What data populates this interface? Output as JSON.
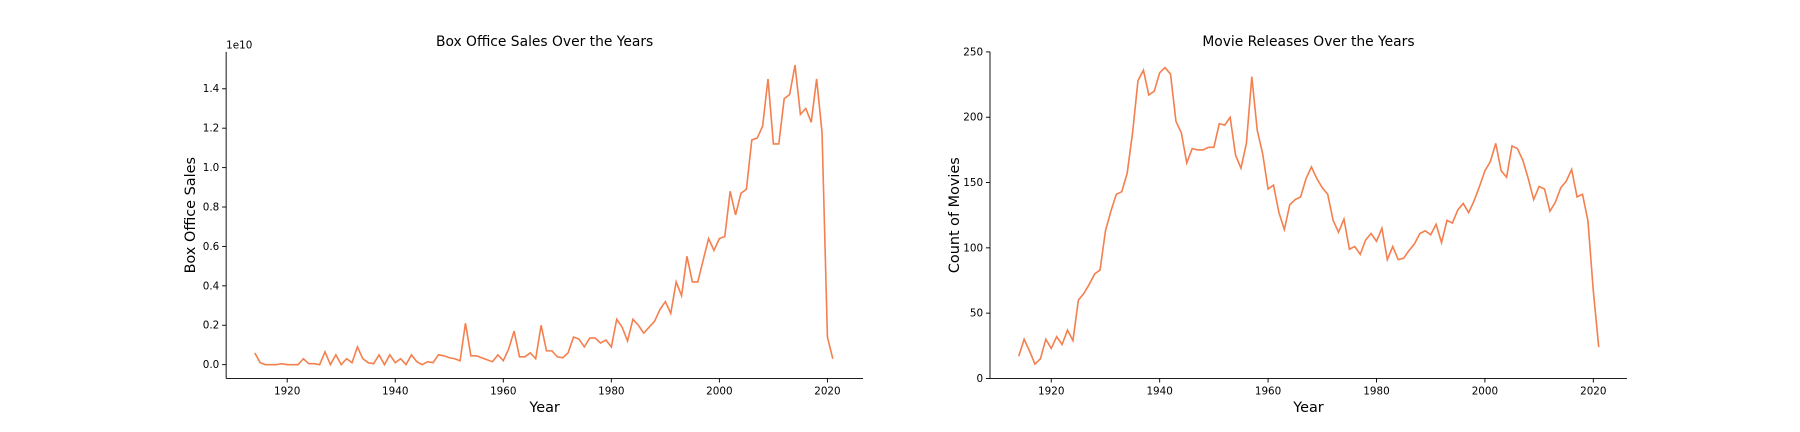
{
  "chart_data": [
    {
      "type": "line",
      "title": "Box Office Sales Over the Years",
      "x_label": "Year",
      "y_label": "Box Office Sales",
      "y_offset_label": "1e10",
      "color": "#f4804f",
      "x": [
        1914,
        1915,
        1916,
        1917,
        1918,
        1919,
        1920,
        1921,
        1922,
        1923,
        1924,
        1925,
        1926,
        1927,
        1928,
        1929,
        1930,
        1931,
        1932,
        1933,
        1934,
        1935,
        1936,
        1937,
        1938,
        1939,
        1940,
        1941,
        1942,
        1943,
        1944,
        1945,
        1946,
        1947,
        1948,
        1949,
        1950,
        1951,
        1952,
        1953,
        1954,
        1955,
        1956,
        1957,
        1958,
        1959,
        1960,
        1961,
        1962,
        1963,
        1964,
        1965,
        1966,
        1967,
        1968,
        1969,
        1970,
        1971,
        1972,
        1973,
        1974,
        1975,
        1976,
        1977,
        1978,
        1979,
        1980,
        1981,
        1982,
        1983,
        1984,
        1985,
        1986,
        1987,
        1988,
        1989,
        1990,
        1991,
        1992,
        1993,
        1994,
        1995,
        1996,
        1997,
        1998,
        1999,
        2000,
        2001,
        2002,
        2003,
        2004,
        2005,
        2006,
        2007,
        2008,
        2009,
        2010,
        2011,
        2012,
        2013,
        2014,
        2015,
        2016,
        2017,
        2018,
        2019,
        2020,
        2021
      ],
      "values": [
        0.06,
        0.01,
        0.0,
        0.0,
        0.0,
        0.005,
        0.0,
        0.0,
        0.0,
        0.03,
        0.005,
        0.005,
        0.0,
        0.065,
        0.0,
        0.05,
        0.0,
        0.03,
        0.01,
        0.09,
        0.03,
        0.01,
        0.005,
        0.05,
        0.0,
        0.05,
        0.01,
        0.03,
        0.0,
        0.05,
        0.015,
        0.0,
        0.015,
        0.01,
        0.05,
        0.045,
        0.035,
        0.03,
        0.02,
        0.21,
        0.045,
        0.045,
        0.035,
        0.025,
        0.015,
        0.05,
        0.02,
        0.08,
        0.17,
        0.04,
        0.04,
        0.06,
        0.03,
        0.2,
        0.07,
        0.07,
        0.04,
        0.035,
        0.06,
        0.14,
        0.13,
        0.09,
        0.135,
        0.135,
        0.11,
        0.125,
        0.09,
        0.23,
        0.19,
        0.12,
        0.23,
        0.2,
        0.16,
        0.19,
        0.22,
        0.28,
        0.32,
        0.26,
        0.42,
        0.35,
        0.55,
        0.42,
        0.42,
        0.53,
        0.64,
        0.58,
        0.64,
        0.65,
        0.88,
        0.76,
        0.87,
        0.89,
        1.14,
        1.15,
        1.21,
        1.45,
        1.12,
        1.12,
        1.35,
        1.37,
        1.52,
        1.27,
        1.3,
        1.23,
        1.45,
        1.18,
        0.14,
        0.03
      ],
      "xlim": [
        1908.7,
        2026.6
      ],
      "ylim": [
        -0.07,
        1.587
      ],
      "xticks": [
        1920,
        1940,
        1960,
        1980,
        2000,
        2020
      ],
      "yticks": [
        {
          "value": 0,
          "label": "0.0"
        },
        0.2,
        0.4,
        0.6,
        0.8,
        {
          "value": 1,
          "label": "1.0"
        },
        1.2,
        1.4
      ]
    },
    {
      "type": "line",
      "title": "Movie Releases Over the Years",
      "x_label": "Year",
      "y_label": "Count of Movies",
      "color": "#f4804f",
      "x": [
        1914,
        1915,
        1916,
        1917,
        1918,
        1919,
        1920,
        1921,
        1922,
        1923,
        1924,
        1925,
        1926,
        1927,
        1928,
        1929,
        1930,
        1931,
        1932,
        1933,
        1934,
        1935,
        1936,
        1937,
        1938,
        1939,
        1940,
        1941,
        1942,
        1943,
        1944,
        1945,
        1946,
        1947,
        1948,
        1949,
        1950,
        1951,
        1952,
        1953,
        1954,
        1955,
        1956,
        1957,
        1958,
        1959,
        1960,
        1961,
        1962,
        1963,
        1964,
        1965,
        1966,
        1967,
        1968,
        1969,
        1970,
        1971,
        1972,
        1973,
        1974,
        1975,
        1976,
        1977,
        1978,
        1979,
        1980,
        1981,
        1982,
        1983,
        1984,
        1985,
        1986,
        1987,
        1988,
        1989,
        1990,
        1991,
        1992,
        1993,
        1994,
        1995,
        1996,
        1997,
        1998,
        1999,
        2000,
        2001,
        2002,
        2003,
        2004,
        2005,
        2006,
        2007,
        2008,
        2009,
        2010,
        2011,
        2012,
        2013,
        2014,
        2015,
        2016,
        2017,
        2018,
        2019,
        2020,
        2021
      ],
      "values": [
        17,
        30,
        21,
        11,
        15,
        30,
        23,
        32,
        26,
        37,
        29,
        60,
        65,
        72,
        80,
        83,
        113,
        128,
        141,
        143,
        157,
        188,
        228,
        236,
        217,
        220,
        234,
        238,
        233,
        197,
        188,
        165,
        176,
        175,
        175,
        177,
        177,
        195,
        194,
        200,
        171,
        161,
        180,
        231,
        190,
        172,
        145,
        148,
        127,
        114,
        133,
        137,
        139,
        153,
        162,
        153,
        146,
        141,
        121,
        112,
        122,
        99,
        101,
        95,
        106,
        111,
        105,
        115,
        91,
        101,
        91,
        92,
        98,
        103,
        111,
        113,
        110,
        118,
        104,
        121,
        119,
        129,
        134,
        127,
        136,
        147,
        159,
        166,
        180,
        159,
        154,
        178,
        176,
        167,
        153,
        137,
        147,
        145,
        128,
        135,
        146,
        151,
        160,
        139,
        141,
        121,
        67,
        24
      ],
      "xlim": [
        1908.7,
        2026.2
      ],
      "ylim": [
        0,
        250
      ],
      "xticks": [
        1920,
        1940,
        1960,
        1980,
        2000,
        2020
      ],
      "yticks": [
        0,
        50,
        100,
        150,
        200,
        250
      ]
    }
  ]
}
